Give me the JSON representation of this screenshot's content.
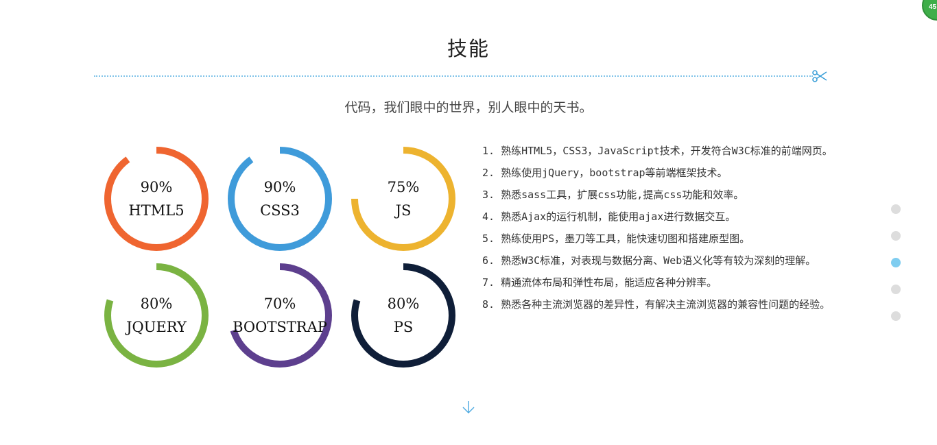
{
  "section": {
    "title": "技能",
    "subtitle": "代码，我们眼中的世界，别人眼中的天书。"
  },
  "skills": [
    {
      "percent_label": "90%",
      "name": "HTML5",
      "value": 90,
      "color": "#ef6530"
    },
    {
      "percent_label": "90%",
      "name": "CSS3",
      "value": 90,
      "color": "#3f9bda"
    },
    {
      "percent_label": "75%",
      "name": "JS",
      "value": 75,
      "color": "#edb32f"
    },
    {
      "percent_label": "80%",
      "name": "JQUERY",
      "value": 80,
      "color": "#7ab342"
    },
    {
      "percent_label": "70%",
      "name": "BOOTSTRAP",
      "value": 70,
      "color": "#5d3f8e"
    },
    {
      "percent_label": "80%",
      "name": "PS",
      "value": 80,
      "color": "#0f1e38"
    }
  ],
  "skill_list": [
    "1. 熟练HTML5，CSS3，JavaScript技术，开发符合W3C标准的前端网页。",
    "2. 熟练使用jQuery，bootstrap等前端框架技术。",
    "3. 熟悉sass工具，扩展css功能,提高css功能和效率。",
    "4. 熟悉Ajax的运行机制，能使用ajax进行数据交互。",
    "5. 熟练使用PS，墨刀等工具，能快速切图和搭建原型图。",
    "6. 熟悉W3C标准，对表现与数据分离、Web语义化等有较为深刻的理解。",
    "7. 精通流体布局和弹性布局，能适应各种分辨率。",
    "8. 熟悉各种主流浏览器的差异性，有解决主流浏览器的兼容性问题的经验。"
  ],
  "pager": {
    "count": 5,
    "active_index": 2,
    "active_color": "#7fcdf0",
    "inactive_color": "#dddddd"
  },
  "icons": {
    "divider_end": "scissors-icon",
    "scroll_down": "arrow-down-icon"
  },
  "badge": {
    "text": "45",
    "color": "#3fae49"
  }
}
